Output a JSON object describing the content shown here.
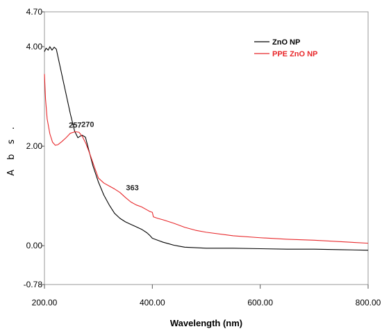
{
  "chart_data": {
    "type": "line",
    "xlabel": "Wavelength (nm)",
    "ylabel": "A b s .",
    "xlim": [
      200,
      800
    ],
    "ylim": [
      -0.78,
      4.7
    ],
    "x_ticks": [
      "200.00",
      "400.00",
      "600.00",
      "800.00"
    ],
    "y_ticks": [
      "4.70",
      "4.00",
      "2.00",
      "0.00",
      "-0.78"
    ],
    "y_tick_values": [
      4.7,
      4.0,
      2.0,
      0.0,
      -0.78
    ],
    "x_tick_values": [
      200,
      400,
      600,
      800
    ],
    "grid": false,
    "legend_position": "top-right",
    "series": [
      {
        "name": "ZnO  NP",
        "color": "#000000",
        "x": [
          200,
          203,
          207,
          210,
          214,
          218,
          222,
          226,
          232,
          240,
          248,
          256,
          262,
          266,
          270,
          276,
          282,
          290,
          300,
          310,
          320,
          330,
          340,
          350,
          360,
          370,
          380,
          390,
          395,
          400,
          410,
          420,
          430,
          440,
          450,
          460,
          480,
          500,
          550,
          600,
          650,
          700,
          750,
          800
        ],
        "y": [
          3.9,
          3.97,
          3.93,
          4.0,
          3.93,
          3.99,
          3.95,
          3.75,
          3.45,
          3.05,
          2.65,
          2.3,
          2.17,
          2.2,
          2.22,
          2.18,
          1.93,
          1.6,
          1.28,
          1.02,
          0.82,
          0.65,
          0.55,
          0.48,
          0.43,
          0.38,
          0.33,
          0.26,
          0.21,
          0.15,
          0.11,
          0.07,
          0.04,
          0.01,
          -0.01,
          -0.03,
          -0.04,
          -0.05,
          -0.05,
          -0.06,
          -0.07,
          -0.07,
          -0.08,
          -0.09
        ]
      },
      {
        "name": "PPE  ZnO NP",
        "color": "#e8272a",
        "x": [
          200,
          202,
          205,
          210,
          215,
          220,
          225,
          232,
          240,
          248,
          257,
          264,
          270,
          277,
          285,
          292,
          300,
          310,
          320,
          330,
          340,
          350,
          360,
          370,
          380,
          390,
          395,
          400,
          402,
          410,
          420,
          440,
          460,
          480,
          500,
          550,
          600,
          650,
          700,
          750,
          800
        ],
        "y": [
          3.45,
          2.95,
          2.55,
          2.25,
          2.08,
          2.02,
          2.03,
          2.09,
          2.17,
          2.26,
          2.29,
          2.28,
          2.2,
          2.05,
          1.82,
          1.6,
          1.36,
          1.26,
          1.2,
          1.14,
          1.07,
          0.97,
          0.88,
          0.82,
          0.78,
          0.72,
          0.69,
          0.67,
          0.58,
          0.55,
          0.52,
          0.45,
          0.37,
          0.31,
          0.27,
          0.2,
          0.16,
          0.13,
          0.11,
          0.08,
          0.05
        ]
      }
    ],
    "annotations": [
      {
        "text": "257",
        "x": 257,
        "y": 2.29
      },
      {
        "text": "270",
        "x": 270,
        "y": 2.22
      },
      {
        "text": "363",
        "x": 363,
        "y": 0.86
      }
    ]
  }
}
